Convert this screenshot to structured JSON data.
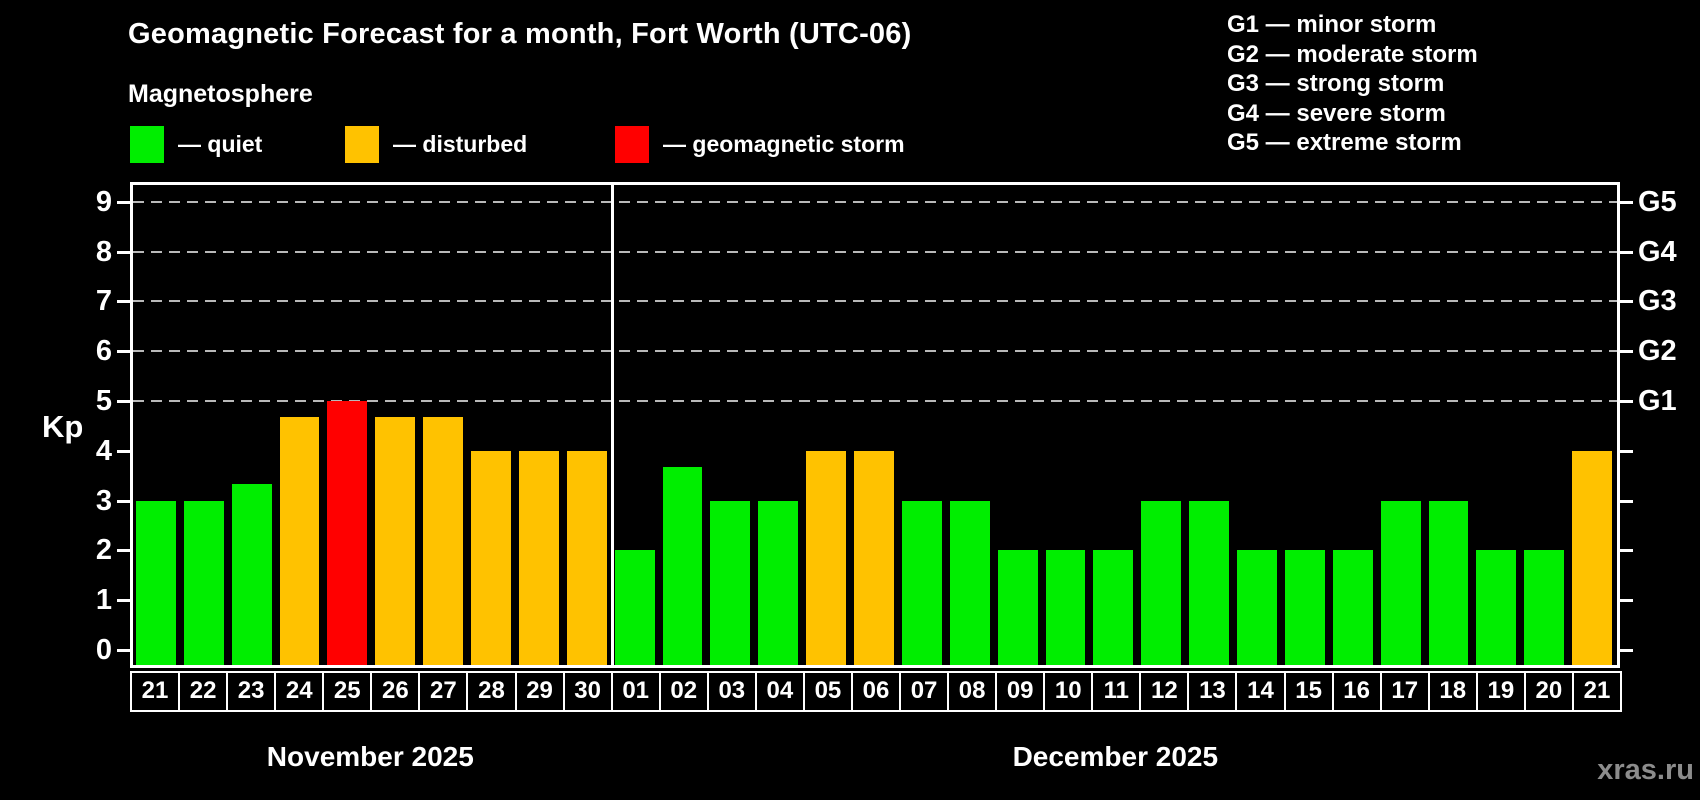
{
  "header": {
    "title": "Geomagnetic Forecast for a month, Fort Worth (UTC-06)",
    "subtitle": "Magnetosphere"
  },
  "legend": {
    "items": [
      {
        "key": "quiet",
        "label": "— quiet",
        "color": "#00ee00"
      },
      {
        "key": "disturbed",
        "label": "— disturbed",
        "color": "#ffc200"
      },
      {
        "key": "storm",
        "label": "— geomagnetic storm",
        "color": "#ff0000"
      }
    ]
  },
  "storm_scale_legend": {
    "items": [
      "G1 — minor storm",
      "G2 — moderate storm",
      "G3 — strong storm",
      "G4 — severe storm",
      "G5 — extreme storm"
    ]
  },
  "chart_data": {
    "type": "bar",
    "title": "Geomagnetic Forecast for a month, Fort Worth (UTC-06)",
    "subtitle": "Magnetosphere",
    "ylabel": "Kp",
    "ylim": [
      -0.35,
      9.4
    ],
    "y_ticks": [
      "0",
      "1",
      "2",
      "3",
      "4",
      "5",
      "6",
      "7",
      "8",
      "9"
    ],
    "gridlines_kp": [
      5,
      6,
      7,
      8,
      9
    ],
    "right_axis_labels": [
      {
        "label": "G1",
        "kp": 5
      },
      {
        "label": "G2",
        "kp": 6
      },
      {
        "label": "G3",
        "kp": 7
      },
      {
        "label": "G4",
        "kp": 8
      },
      {
        "label": "G5",
        "kp": 9
      }
    ],
    "colors": {
      "quiet": "#00ee00",
      "disturbed": "#ffc200",
      "storm": "#ff0000"
    },
    "months": [
      {
        "label": "November 2025",
        "days": [
          "21",
          "22",
          "23",
          "24",
          "25",
          "26",
          "27",
          "28",
          "29",
          "30"
        ],
        "values": [
          3,
          3,
          3.33,
          4.67,
          5,
          4.67,
          4.67,
          4,
          4,
          4
        ],
        "status": [
          "quiet",
          "quiet",
          "quiet",
          "disturbed",
          "storm",
          "disturbed",
          "disturbed",
          "disturbed",
          "disturbed",
          "disturbed"
        ]
      },
      {
        "label": "December 2025",
        "days": [
          "01",
          "02",
          "03",
          "04",
          "05",
          "06",
          "07",
          "08",
          "09",
          "10",
          "11",
          "12",
          "13",
          "14",
          "15",
          "16",
          "17",
          "18",
          "19",
          "20",
          "21"
        ],
        "values": [
          2,
          3.67,
          3,
          3,
          4,
          4,
          3,
          3,
          2,
          2,
          2,
          3,
          3,
          2,
          2,
          2,
          3,
          3,
          2,
          2,
          4
        ],
        "status": [
          "quiet",
          "quiet",
          "quiet",
          "quiet",
          "disturbed",
          "disturbed",
          "quiet",
          "quiet",
          "quiet",
          "quiet",
          "quiet",
          "quiet",
          "quiet",
          "quiet",
          "quiet",
          "quiet",
          "quiet",
          "quiet",
          "quiet",
          "quiet",
          "disturbed"
        ]
      }
    ]
  },
  "watermark": "xras.ru"
}
